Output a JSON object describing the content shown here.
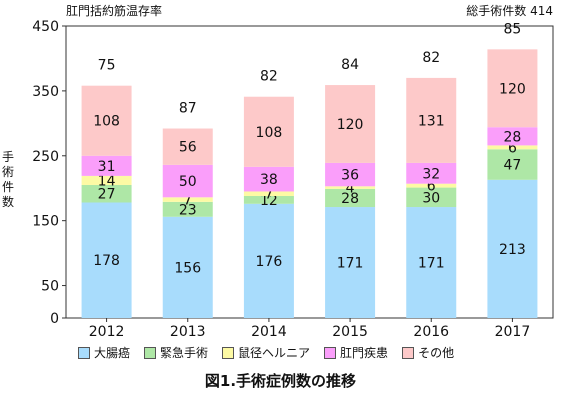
{
  "header": {
    "top_left": "肛門括約筋温存率",
    "top_right": "総手術件数 414"
  },
  "caption": "図1.手術症例数の推移",
  "chart_data": {
    "type": "bar",
    "stacked": true,
    "categories": [
      "2012",
      "2013",
      "2014",
      "2015",
      "2016",
      "2017"
    ],
    "series": [
      {
        "name": "大腸癌",
        "color": "#a8dcfc",
        "values": [
          178,
          156,
          176,
          171,
          171,
          213
        ]
      },
      {
        "name": "緊急手術",
        "color": "#aee7a6",
        "values": [
          27,
          23,
          12,
          28,
          30,
          47
        ]
      },
      {
        "name": "鼠径ヘルニア",
        "color": "#fdfaa4",
        "values": [
          14,
          7,
          7,
          4,
          6,
          6
        ]
      },
      {
        "name": "肛門疾患",
        "color": "#fa9efa",
        "values": [
          31,
          50,
          38,
          36,
          32,
          28
        ]
      },
      {
        "name": "その他",
        "color": "#fdc9c9",
        "values": [
          108,
          56,
          108,
          120,
          131,
          120
        ]
      }
    ],
    "extra_labels": [
      75,
      87,
      82,
      84,
      82,
      85
    ],
    "ylabel": "手術件数",
    "ylim": [
      0,
      450
    ],
    "yticks": [
      0,
      50,
      150,
      250,
      350,
      450
    ],
    "grid": false,
    "legend_position": "bottom"
  }
}
